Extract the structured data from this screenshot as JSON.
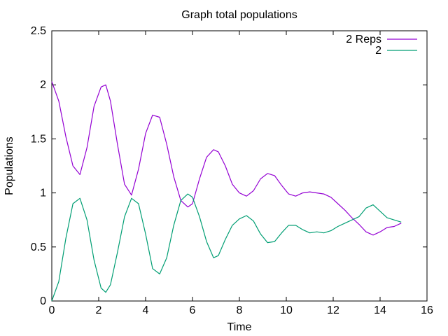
{
  "chart_data": {
    "type": "line",
    "title": "Graph total populations",
    "xlabel": "Time",
    "ylabel": "Populations",
    "xlim": [
      0,
      16
    ],
    "ylim": [
      0,
      2.5
    ],
    "xticks": [
      0,
      2,
      4,
      6,
      8,
      10,
      12,
      14,
      16
    ],
    "yticks": [
      0,
      0.5,
      1,
      1.5,
      2,
      2.5
    ],
    "xtick_labels": [
      "0",
      "2",
      "4",
      "6",
      "8",
      "10",
      "12",
      "14",
      "16"
    ],
    "ytick_labels": [
      "0",
      "0.5",
      "1",
      "1.5",
      "2",
      "2.5"
    ],
    "grid": false,
    "legend_position": "top-right",
    "series": [
      {
        "name": "2 Reps",
        "color": "#9400d3",
        "x": [
          0,
          0.3,
          0.6,
          0.9,
          1.2,
          1.5,
          1.8,
          2.1,
          2.3,
          2.5,
          2.8,
          3.1,
          3.4,
          3.7,
          4.0,
          4.3,
          4.6,
          4.9,
          5.2,
          5.5,
          5.8,
          6.0,
          6.3,
          6.6,
          6.9,
          7.1,
          7.4,
          7.7,
          8.0,
          8.3,
          8.6,
          8.9,
          9.2,
          9.5,
          9.8,
          10.1,
          10.4,
          10.7,
          11.0,
          11.3,
          11.6,
          11.9,
          12.2,
          12.5,
          12.8,
          13.1,
          13.4,
          13.7,
          14.0,
          14.3,
          14.6,
          14.9
        ],
        "y": [
          2.03,
          1.85,
          1.52,
          1.25,
          1.17,
          1.42,
          1.8,
          1.98,
          2.0,
          1.85,
          1.45,
          1.08,
          0.98,
          1.22,
          1.55,
          1.72,
          1.7,
          1.45,
          1.15,
          0.93,
          0.87,
          0.9,
          1.13,
          1.33,
          1.4,
          1.38,
          1.25,
          1.08,
          1.0,
          0.97,
          1.02,
          1.13,
          1.18,
          1.16,
          1.07,
          0.99,
          0.97,
          1.0,
          1.01,
          1.0,
          0.99,
          0.96,
          0.9,
          0.84,
          0.77,
          0.71,
          0.64,
          0.61,
          0.64,
          0.68,
          0.69,
          0.72
        ]
      },
      {
        "name": "2",
        "color": "#009e73",
        "x": [
          0,
          0.3,
          0.6,
          0.9,
          1.2,
          1.5,
          1.8,
          2.1,
          2.3,
          2.5,
          2.8,
          3.1,
          3.4,
          3.7,
          4.0,
          4.3,
          4.6,
          4.9,
          5.2,
          5.5,
          5.8,
          6.0,
          6.3,
          6.6,
          6.9,
          7.1,
          7.4,
          7.7,
          8.0,
          8.3,
          8.6,
          8.9,
          9.2,
          9.5,
          9.8,
          10.1,
          10.4,
          10.7,
          11.0,
          11.3,
          11.6,
          11.9,
          12.2,
          12.5,
          12.8,
          13.1,
          13.4,
          13.7,
          14.0,
          14.3,
          14.6,
          14.9
        ],
        "y": [
          0.0,
          0.18,
          0.58,
          0.9,
          0.95,
          0.75,
          0.38,
          0.12,
          0.08,
          0.15,
          0.45,
          0.78,
          0.95,
          0.9,
          0.62,
          0.3,
          0.25,
          0.4,
          0.7,
          0.93,
          0.99,
          0.96,
          0.78,
          0.55,
          0.4,
          0.42,
          0.57,
          0.7,
          0.76,
          0.79,
          0.74,
          0.62,
          0.54,
          0.55,
          0.63,
          0.7,
          0.7,
          0.66,
          0.63,
          0.64,
          0.63,
          0.65,
          0.69,
          0.72,
          0.75,
          0.78,
          0.86,
          0.89,
          0.83,
          0.77,
          0.75,
          0.73
        ]
      }
    ]
  }
}
